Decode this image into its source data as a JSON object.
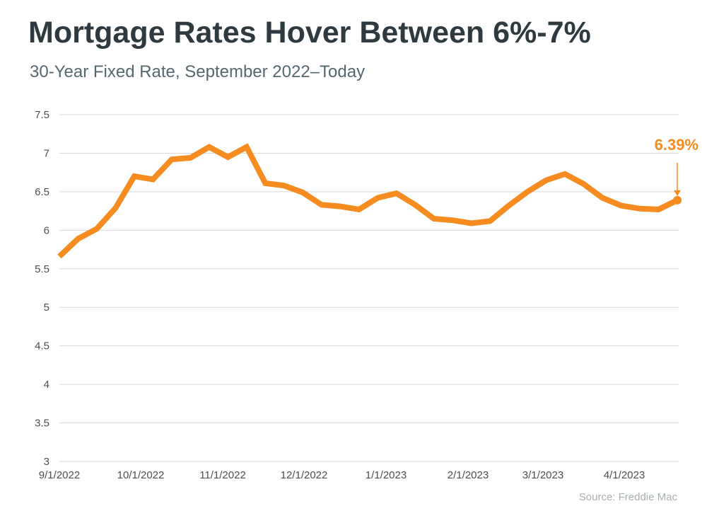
{
  "header": {
    "title": "Mortgage Rates Hover Between 6%-7%",
    "subtitle": "30-Year Fixed Rate, September 2022–Today"
  },
  "footer": {
    "source": "Source: Freddie Mac"
  },
  "colors": {
    "line": "#f68b1f",
    "grid": "#d9d9d9",
    "title": "#2e3a3f",
    "subtitle": "#56686f",
    "source": "#a8b0b4"
  },
  "chart_data": {
    "type": "line",
    "title": "Mortgage Rates Hover Between 6%-7%",
    "subtitle": "30-Year Fixed Rate, September 2022–Today",
    "xlabel": "",
    "ylabel": "",
    "ylim": [
      3,
      7.5
    ],
    "y_ticks": [
      "3",
      "3.5",
      "4",
      "4.5",
      "5",
      "5.5",
      "6",
      "6.5",
      "7",
      "7.5"
    ],
    "x_ticks": [
      "9/1/2022",
      "10/1/2022",
      "11/1/2022",
      "12/1/2022",
      "1/1/2023",
      "2/1/2023",
      "3/1/2023",
      "4/1/2023"
    ],
    "grid": true,
    "legend": "none",
    "series": [
      {
        "values": [
          5.66,
          5.89,
          6.02,
          6.29,
          6.7,
          6.66,
          6.92,
          6.94,
          7.08,
          6.95,
          7.08,
          6.61,
          6.58,
          6.49,
          6.33,
          6.31,
          6.27,
          6.42,
          6.48,
          6.33,
          6.15,
          6.13,
          6.09,
          6.12,
          6.32,
          6.5,
          6.65,
          6.73,
          6.6,
          6.42,
          6.32,
          6.28,
          6.27,
          6.39
        ]
      }
    ],
    "annotations": [
      {
        "label": "6.39%",
        "value": 6.39
      }
    ]
  }
}
